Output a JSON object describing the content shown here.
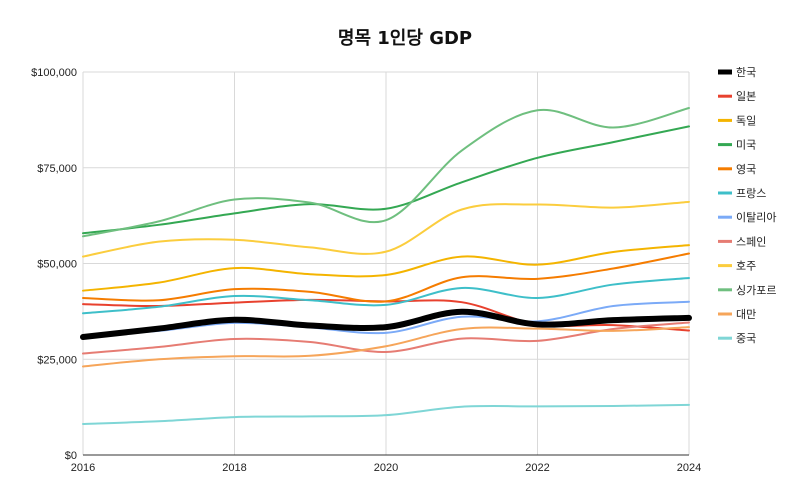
{
  "chart_data": {
    "type": "line",
    "title": "명목 1인당 GDP",
    "xlabel": "",
    "ylabel": "",
    "x": [
      2016,
      2017,
      2018,
      2019,
      2020,
      2021,
      2022,
      2023,
      2024
    ],
    "x_ticks": [
      "2016",
      "2018",
      "2020",
      "2022",
      "2024"
    ],
    "x_tick_values": [
      2016,
      2018,
      2020,
      2022,
      2024
    ],
    "y_ticks": [
      "$0",
      "$25,000",
      "$50,000",
      "$75,000",
      "$100,000"
    ],
    "y_tick_values": [
      0,
      25000,
      50000,
      75000,
      100000
    ],
    "xlim": [
      2016,
      2024
    ],
    "ylim": [
      0,
      100000
    ],
    "grid": true,
    "legend_position": "right",
    "series": [
      {
        "name": "한국",
        "color": "#000000",
        "emphasis": true,
        "values": [
          30800,
          33000,
          35300,
          33800,
          33400,
          37400,
          34100,
          35200,
          35800
        ]
      },
      {
        "name": "일본",
        "color": "#e8412e",
        "values": [
          39400,
          38900,
          39800,
          40500,
          40100,
          39900,
          34100,
          33900,
          32500
        ]
      },
      {
        "name": "독일",
        "color": "#f4b400",
        "values": [
          42900,
          45000,
          48800,
          47200,
          47000,
          51800,
          49700,
          53000,
          54800
        ]
      },
      {
        "name": "미국",
        "color": "#34a853",
        "values": [
          57900,
          60100,
          63100,
          65500,
          64300,
          71200,
          77600,
          81700,
          85800
        ]
      },
      {
        "name": "영국",
        "color": "#f57c00",
        "values": [
          41000,
          40400,
          43300,
          42600,
          40100,
          46400,
          46000,
          48700,
          52600
        ]
      },
      {
        "name": "프랑스",
        "color": "#3ebfc9",
        "values": [
          37000,
          38700,
          41500,
          40400,
          39200,
          43600,
          41000,
          44500,
          46200
        ]
      },
      {
        "name": "이탈리아",
        "color": "#7baaf7",
        "values": [
          31200,
          32400,
          34500,
          33300,
          31900,
          36100,
          34900,
          38900,
          40000
        ]
      },
      {
        "name": "스페인",
        "color": "#e67c73",
        "values": [
          26500,
          28200,
          30300,
          29500,
          26900,
          30400,
          29800,
          32900,
          34600
        ]
      },
      {
        "name": "호주",
        "color": "#fbcd3e",
        "values": [
          51800,
          55700,
          56200,
          54200,
          53100,
          64100,
          65400,
          64600,
          66100
        ]
      },
      {
        "name": "싱가포르",
        "color": "#6fbf7f",
        "values": [
          57100,
          61000,
          66700,
          65900,
          61300,
          79500,
          90000,
          85500,
          90600
        ]
      },
      {
        "name": "대만",
        "color": "#f6a55a",
        "values": [
          23100,
          25000,
          25800,
          25900,
          28400,
          32900,
          33000,
          32400,
          33400
        ]
      },
      {
        "name": "중국",
        "color": "#7fd6d6",
        "values": [
          8100,
          8800,
          9900,
          10100,
          10400,
          12600,
          12700,
          12800,
          13100
        ]
      }
    ]
  }
}
